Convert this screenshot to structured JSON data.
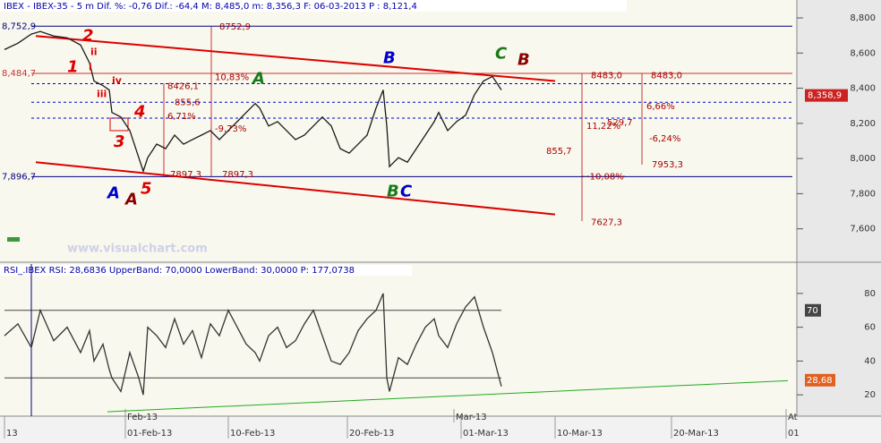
{
  "chart_data": [
    {
      "type": "line",
      "title": "IBEX - IBEX-35 - 5 m Dif. %: -0,76 Dif.: -64,4 M: 8,485,0 m: 8,356,3 F: 06-03-2013 P : 8,121,4",
      "watermark": "www.visualchart.com",
      "x": [
        5,
        20,
        35,
        45,
        60,
        75,
        90,
        100,
        105,
        115,
        122,
        125,
        135,
        145,
        155,
        160,
        165,
        175,
        185,
        195,
        205,
        215,
        225,
        235,
        245,
        255,
        265,
        275,
        285,
        290,
        300,
        310,
        320,
        330,
        340,
        350,
        360,
        370,
        380,
        390,
        400,
        410,
        420,
        428,
        432,
        435,
        445,
        455,
        465,
        475,
        485,
        490,
        500,
        510,
        520,
        530,
        540,
        550,
        560
      ],
      "series": [
        {
          "name": "IBEX",
          "color": "#1a1a1a",
          "values": [
            8620,
            8656,
            8708,
            8723,
            8697,
            8687,
            8646,
            8544,
            8441,
            8415,
            8390,
            8262,
            8236,
            8159,
            8005,
            7928,
            8005,
            8082,
            8056,
            8133,
            8082,
            8108,
            8133,
            8159,
            8108,
            8159,
            8210,
            8262,
            8313,
            8287,
            8185,
            8210,
            8159,
            8108,
            8133,
            8185,
            8236,
            8185,
            8056,
            8031,
            8082,
            8133,
            8287,
            8390,
            8185,
            7954,
            8005,
            7979,
            8056,
            8133,
            8210,
            8262,
            8159,
            8210,
            8246,
            8364,
            8441,
            8467,
            8390
          ]
        }
      ],
      "xlim": [
        0,
        885
      ],
      "ylim": [
        7415,
        8902
      ],
      "yticks": [
        {
          "value": 8800,
          "label": "8,800"
        },
        {
          "value": 8600,
          "label": "8,600"
        },
        {
          "value": 8400,
          "label": "8,400"
        },
        {
          "value": 8200,
          "label": "8,200"
        },
        {
          "value": 8000,
          "label": "8,000"
        },
        {
          "value": 7800,
          "label": "7,800"
        },
        {
          "value": 7600,
          "label": "7,600"
        }
      ],
      "last_price": {
        "value": 8358.9,
        "label": "8,358,9"
      },
      "hlines": [
        {
          "value": 8752.9,
          "label": "8,752,9",
          "color": "#000080",
          "dash": false
        },
        {
          "value": 8484.7,
          "label": "8,484,7",
          "color": "#cc3333",
          "dash": false
        },
        {
          "value": 8426.1,
          "color": "#0000cc",
          "dash": true
        },
        {
          "value": 8320,
          "color": "#0000cc",
          "dash": true
        },
        {
          "value": 8230,
          "color": "#0000cc",
          "dash": true
        },
        {
          "value": 7896.7,
          "label": "7,896,7",
          "color": "#000080",
          "dash": false
        }
      ],
      "trendlines": [
        {
          "x": [
            40,
            620
          ],
          "y": [
            8697,
            8441
          ],
          "color": "#dd0000"
        },
        {
          "x": [
            40,
            620
          ],
          "y": [
            7979,
            7682
          ],
          "color": "#dd0000"
        }
      ],
      "annotations": [
        {
          "text": "A",
          "x": 120,
          "y": 7800,
          "color": "#0000cc"
        },
        {
          "text": "A",
          "x": 140,
          "y": 7764,
          "color": "#8b0000"
        },
        {
          "text": "5",
          "x": 157,
          "y": 7826,
          "color": "#dd0000"
        },
        {
          "text": "3",
          "x": 127,
          "y": 8092,
          "color": "#dd0000"
        },
        {
          "text": "4",
          "x": 150,
          "y": 8262,
          "color": "#dd0000"
        },
        {
          "text": "1",
          "x": 75,
          "y": 8518,
          "color": "#dd0000"
        },
        {
          "text": "2",
          "x": 92,
          "y": 8697,
          "color": "#dd0000"
        },
        {
          "text": "i",
          "x": 99,
          "y": 8518,
          "color": "#dd0000"
        },
        {
          "text": "ii",
          "x": 101,
          "y": 8605,
          "color": "#dd0000"
        },
        {
          "text": "iii",
          "x": 108,
          "y": 8364,
          "color": "#dd0000"
        },
        {
          "text": "iv",
          "x": 125,
          "y": 8441,
          "color": "#dd0000"
        },
        {
          "text": "A",
          "x": 282,
          "y": 8451,
          "color": "#1a7a1a"
        },
        {
          "text": "B",
          "x": 428,
          "y": 8569,
          "color": "#0000cc"
        },
        {
          "text": "B",
          "x": 432,
          "y": 7810,
          "color": "#1a7a1a"
        },
        {
          "text": "C",
          "x": 447,
          "y": 7810,
          "color": "#0000cc"
        },
        {
          "text": "C",
          "x": 553,
          "y": 8595,
          "color": "#1a7a1a"
        },
        {
          "text": "B",
          "x": 578,
          "y": 8559,
          "color": "#8b0000"
        },
        {
          "text": "8752,9",
          "x": 245,
          "y": 8749,
          "color": "#aa0000"
        },
        {
          "text": "8426,1",
          "x": 187,
          "y": 8410,
          "color": "#aa0000"
        },
        {
          "text": "10,83%",
          "x": 240,
          "y": 8462,
          "color": "#aa0000"
        },
        {
          "text": "855,6",
          "x": 195,
          "y": 8318,
          "color": "#aa0000"
        },
        {
          "text": "6,71%",
          "x": 187,
          "y": 8241,
          "color": "#aa0000"
        },
        {
          "text": "-9,73%",
          "x": 240,
          "y": 8169,
          "color": "#aa0000"
        },
        {
          "text": "7897,3",
          "x": 190,
          "y": 7908,
          "color": "#aa0000"
        },
        {
          "text": "7897,3",
          "x": 248,
          "y": 7908,
          "color": "#aa0000"
        },
        {
          "text": "8483,0",
          "x": 660,
          "y": 8472,
          "color": "#aa0000"
        },
        {
          "text": "8483,0",
          "x": 727,
          "y": 8472,
          "color": "#aa0000"
        },
        {
          "text": "6,66%",
          "x": 722,
          "y": 8297,
          "color": "#aa0000"
        },
        {
          "text": "529,7",
          "x": 678,
          "y": 8205,
          "color": "#aa0000"
        },
        {
          "text": "11,22%",
          "x": 655,
          "y": 8185,
          "color": "#aa0000"
        },
        {
          "text": "-6,24%",
          "x": 725,
          "y": 8113,
          "color": "#aa0000"
        },
        {
          "text": "855,7",
          "x": 610,
          "y": 8041,
          "color": "#aa0000"
        },
        {
          "text": "7953,3",
          "x": 728,
          "y": 7964,
          "color": "#aa0000"
        },
        {
          "text": "-10,08%",
          "x": 655,
          "y": 7897,
          "color": "#aa0000"
        },
        {
          "text": "7627,3",
          "x": 660,
          "y": 7636,
          "color": "#aa0000"
        }
      ],
      "xticks": [
        {
          "value": 5,
          "label": "13"
        },
        {
          "value": 140,
          "label": "01-Feb-13"
        },
        {
          "value": 255,
          "label": "10-Feb-13"
        },
        {
          "value": 388,
          "label": "20-Feb-13"
        },
        {
          "value": 515,
          "label": "01-Mar-13"
        },
        {
          "value": 620,
          "label": "10-Mar-13"
        },
        {
          "value": 750,
          "label": "20-Mar-13"
        },
        {
          "value": 878,
          "label": "01"
        }
      ],
      "month_ticks": [
        {
          "value": 140,
          "label": "Feb-13"
        },
        {
          "value": 507,
          "label": "Mar-13"
        },
        {
          "value": 878,
          "label": "At"
        }
      ]
    },
    {
      "type": "line",
      "title": "RSI_.IBEX RSI: 28,6836 UpperBand: 70,0000 LowerBand: 30,0000 P: 177,0738",
      "x": [
        5,
        20,
        35,
        45,
        60,
        75,
        90,
        100,
        105,
        115,
        122,
        125,
        135,
        145,
        155,
        160,
        165,
        175,
        185,
        195,
        205,
        215,
        225,
        235,
        245,
        255,
        265,
        275,
        285,
        290,
        300,
        310,
        320,
        330,
        340,
        350,
        360,
        370,
        380,
        390,
        400,
        410,
        420,
        428,
        432,
        435,
        445,
        455,
        465,
        475,
        485,
        490,
        500,
        510,
        520,
        530,
        540,
        550,
        560
      ],
      "series": [
        {
          "name": "RSI",
          "color": "#333333",
          "values": [
            55,
            62,
            48,
            70,
            52,
            60,
            45,
            58,
            40,
            50,
            35,
            30,
            22,
            45,
            30,
            20,
            60,
            55,
            48,
            65,
            50,
            58,
            42,
            62,
            55,
            70,
            60,
            50,
            45,
            40,
            55,
            60,
            48,
            52,
            62,
            70,
            55,
            40,
            38,
            45,
            58,
            65,
            70,
            80,
            30,
            22,
            42,
            38,
            50,
            60,
            65,
            55,
            48,
            62,
            72,
            78,
            60,
            45,
            25
          ]
        }
      ],
      "xlim": [
        0,
        885
      ],
      "ylim": [
        7.4,
        97.4
      ],
      "yticks": [
        20,
        40,
        60,
        80
      ],
      "bands": [
        70,
        30
      ],
      "markers": [
        70,
        {
          "value": 28.68,
          "label": "28,68"
        }
      ],
      "trendline": {
        "x": [
          120,
          880
        ],
        "y": [
          10,
          28.4
        ],
        "color": "#22aa22"
      }
    }
  ]
}
